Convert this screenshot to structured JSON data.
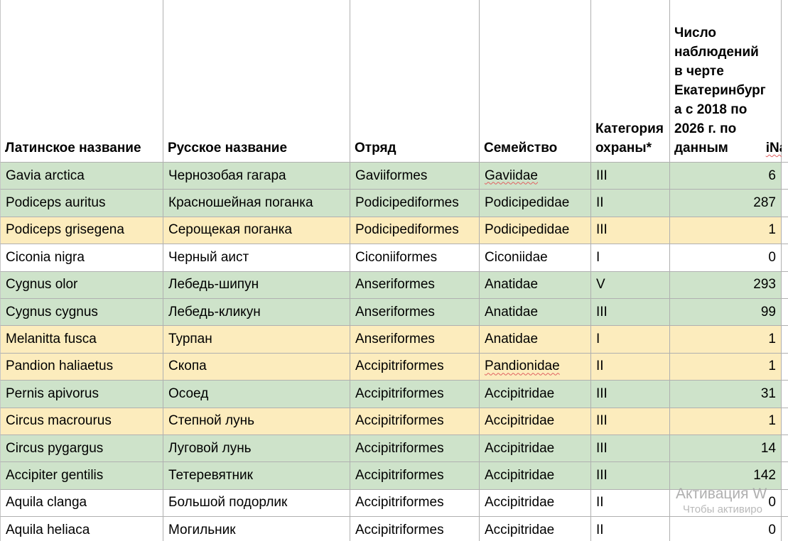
{
  "table": {
    "columns": [
      {
        "label": "Латинское название"
      },
      {
        "label": "Русское название"
      },
      {
        "label": "Отряд"
      },
      {
        "label": "Семейство"
      },
      {
        "label": "Категория\nохраны*"
      },
      {
        "label": "Число\nнаблюдений\nв черте\nЕкатеринбург\nа с 2018 по\n2026 г. по\nданным\niNaturalist"
      }
    ],
    "rows": [
      {
        "latin": "Gavia arctica",
        "russian": "Чернозобая гагара",
        "order": "Gaviiformes",
        "family": "Gaviidae",
        "category": "III",
        "observations": "6",
        "fill": "green"
      },
      {
        "latin": "Podiceps auritus",
        "russian": "Красношейная поганка",
        "order": "Podicipediformes",
        "family": "Podicipedidae",
        "category": "II",
        "observations": "287",
        "fill": "green"
      },
      {
        "latin": "Podiceps grisegena",
        "russian": "Серощекая поганка",
        "order": "Podicipediformes",
        "family": "Podicipedidae",
        "category": "III",
        "observations": "1",
        "fill": "yellow"
      },
      {
        "latin": "Ciconia nigra",
        "russian": "Черный аист",
        "order": "Ciconiiformes",
        "family": "Ciconiidae",
        "category": "I",
        "observations": "0",
        "fill": "white"
      },
      {
        "latin": "Cygnus olor",
        "russian": "Лебедь-шипун",
        "order": "Anseriformes",
        "family": "Anatidae",
        "category": "V",
        "observations": "293",
        "fill": "green"
      },
      {
        "latin": "Cygnus cygnus",
        "russian": "Лебедь-кликун",
        "order": "Anseriformes",
        "family": "Anatidae",
        "category": "III",
        "observations": "99",
        "fill": "green"
      },
      {
        "latin": "Melanitta fusca",
        "russian": "Турпан",
        "order": "Anseriformes",
        "family": "Anatidae",
        "category": "I",
        "observations": "1",
        "fill": "yellow"
      },
      {
        "latin": "Pandion haliaetus",
        "russian": "Скопа",
        "order": "Accipitriformes",
        "family": "Pandionidae",
        "category": "II",
        "observations": "1",
        "fill": "yellow"
      },
      {
        "latin": "Pernis apivorus",
        "russian": "Осоед",
        "order": "Accipitriformes",
        "family": "Accipitridae",
        "category": "III",
        "observations": "31",
        "fill": "green"
      },
      {
        "latin": "Circus macrourus",
        "russian": "Степной лунь",
        "order": "Accipitriformes",
        "family": "Accipitridae",
        "category": "III",
        "observations": "1",
        "fill": "yellow"
      },
      {
        "latin": "Circus pygargus",
        "russian": "Луговой лунь",
        "order": "Accipitriformes",
        "family": "Accipitridae",
        "category": "III",
        "observations": "14",
        "fill": "green"
      },
      {
        "latin": "Accipiter gentilis",
        "russian": "Тетеревятник",
        "order": "Accipitriformes",
        "family": "Accipitridae",
        "category": "III",
        "observations": "142",
        "fill": "green"
      },
      {
        "latin": "Aquila clanga",
        "russian": "Большой подорлик",
        "order": "Accipitriformes",
        "family": "Accipitridae",
        "category": "II",
        "observations": "0",
        "fill": "white"
      },
      {
        "latin": "Aquila heliaca",
        "russian": "Могильник",
        "order": "Accipitriformes",
        "family": "Accipitridae",
        "category": "II",
        "observations": "0",
        "fill": "white"
      }
    ],
    "misspelled_words": [
      "Gaviidae",
      "Pandionidae",
      "iNaturalist"
    ]
  },
  "colors": {
    "green": "#cee3ca",
    "yellow": "#fcecbd",
    "white": "#ffffff",
    "grid": "#b0b0b0",
    "spellcheck_red": "#e06060",
    "watermark_gray": "#a2a2a2"
  },
  "watermark": {
    "line1": "Активация W",
    "line2": "Чтобы активиро"
  }
}
